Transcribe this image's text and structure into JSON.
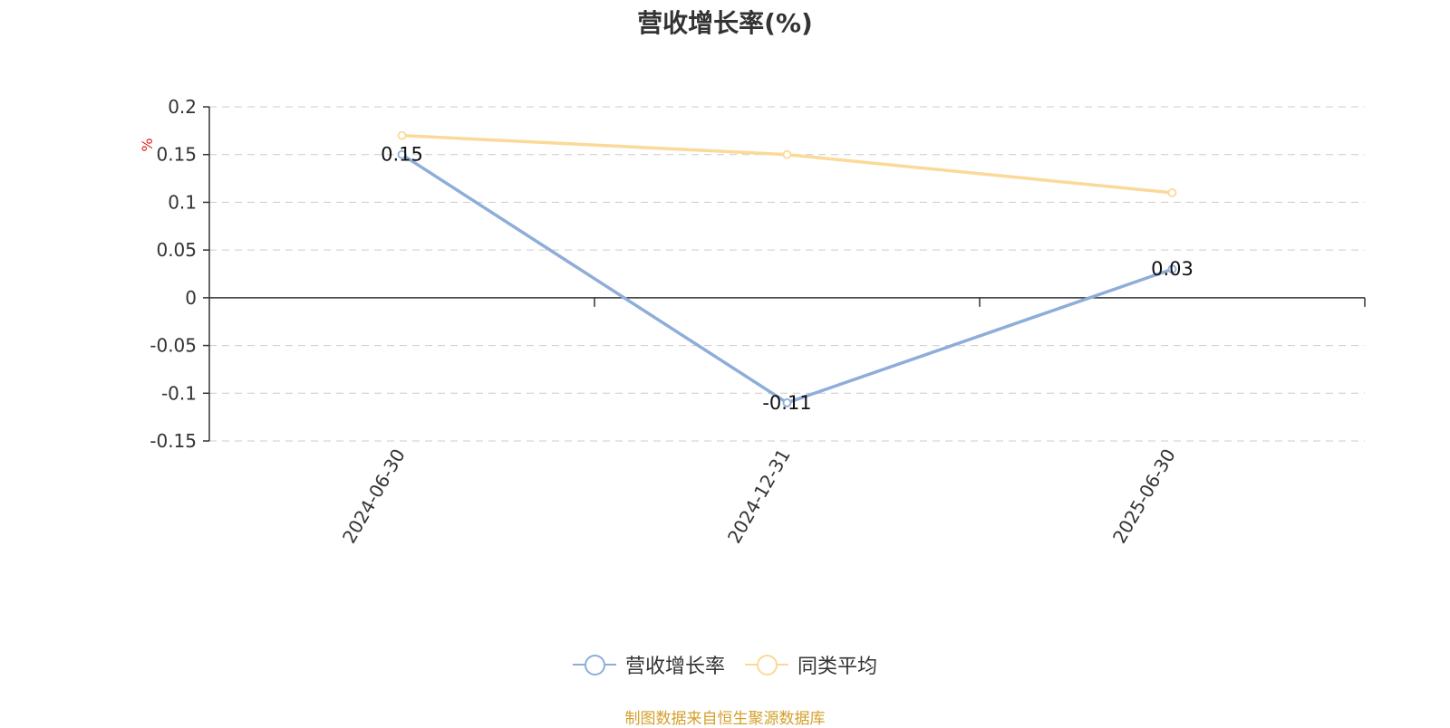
{
  "chart_data": {
    "type": "line",
    "title": "营收增长率(%)",
    "ylabel": "%",
    "xlabel": "",
    "categories": [
      "2024-06-30",
      "2024-12-31",
      "2025-06-30"
    ],
    "series": [
      {
        "name": "营收增长率",
        "values": [
          0.15,
          -0.11,
          0.03
        ],
        "color": "#8eadd8",
        "data_labels": [
          "0.15",
          "-0.11",
          "0.03"
        ]
      },
      {
        "name": "同类平均",
        "values": [
          0.17,
          0.15,
          0.11
        ],
        "color": "#fbd999",
        "data_labels": []
      }
    ],
    "ylim": [
      -0.15,
      0.2
    ],
    "yticks": [
      0.2,
      0.15,
      0.1,
      0.05,
      0,
      -0.05,
      -0.1,
      -0.15
    ],
    "ytick_labels": [
      "0.2",
      "0.15",
      "0.1",
      "0.05",
      "0",
      "-0.05",
      "-0.1",
      "-0.15"
    ],
    "grid": true,
    "legend": "bottom-center"
  },
  "source_note": "制图数据来自恒生聚源数据库",
  "colors": {
    "title": "#333333",
    "axis": "#333333",
    "grid": "#cccccc",
    "ylabel": "#e02020",
    "source_note": "#d4a02c"
  }
}
